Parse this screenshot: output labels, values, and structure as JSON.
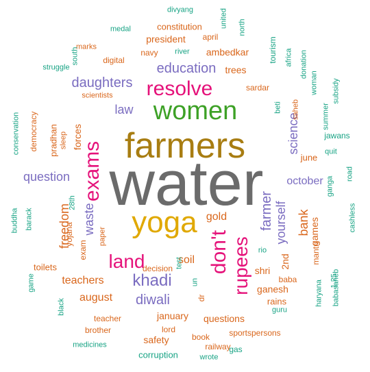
{
  "colors": {
    "gray": "#6b6b6b",
    "brown": "#a87d12",
    "gold": "#e0a800",
    "green": "#3da126",
    "magenta": "#e5127a",
    "purple": "#7a6cc0",
    "orange": "#d9661b",
    "teal": "#17a384"
  },
  "words": [
    {
      "text": "water",
      "color": "gray",
      "vertical": false
    },
    {
      "text": "farmers",
      "color": "brown",
      "vertical": false
    },
    {
      "text": "yoga",
      "color": "gold",
      "vertical": false
    },
    {
      "text": "women",
      "color": "green",
      "vertical": false
    },
    {
      "text": "exams",
      "color": "magenta",
      "vertical": true
    },
    {
      "text": "don't",
      "color": "magenta",
      "vertical": true
    },
    {
      "text": "rupees",
      "color": "magenta",
      "vertical": true
    },
    {
      "text": "land",
      "color": "magenta",
      "vertical": false
    },
    {
      "text": "resolve",
      "color": "magenta",
      "vertical": false
    },
    {
      "text": "education",
      "color": "purple",
      "vertical": false
    },
    {
      "text": "khadi",
      "color": "purple",
      "vertical": false
    },
    {
      "text": "diwali",
      "color": "purple",
      "vertical": false
    },
    {
      "text": "farmer",
      "color": "purple",
      "vertical": true
    },
    {
      "text": "yourself",
      "color": "purple",
      "vertical": true
    },
    {
      "text": "daughters",
      "color": "purple",
      "vertical": false
    },
    {
      "text": "question",
      "color": "purple",
      "vertical": false
    },
    {
      "text": "science",
      "color": "purple",
      "vertical": true
    },
    {
      "text": "october",
      "color": "purple",
      "vertical": false
    },
    {
      "text": "waste",
      "color": "purple",
      "vertical": true
    },
    {
      "text": "law",
      "color": "purple",
      "vertical": false
    },
    {
      "text": "freedom",
      "color": "orange",
      "vertical": true
    },
    {
      "text": "teachers",
      "color": "orange",
      "vertical": false
    },
    {
      "text": "august",
      "color": "orange",
      "vertical": false
    },
    {
      "text": "gold",
      "color": "orange",
      "vertical": false
    },
    {
      "text": "soil",
      "color": "orange",
      "vertical": false
    },
    {
      "text": "shri",
      "color": "orange",
      "vertical": false
    },
    {
      "text": "bank",
      "color": "orange",
      "vertical": true
    },
    {
      "text": "games",
      "color": "orange",
      "vertical": true
    },
    {
      "text": "ganesh",
      "color": "orange",
      "vertical": false
    },
    {
      "text": "january",
      "color": "orange",
      "vertical": false
    },
    {
      "text": "questions",
      "color": "orange",
      "vertical": false
    },
    {
      "text": "forces",
      "color": "orange",
      "vertical": true
    },
    {
      "text": "sardar",
      "color": "orange",
      "vertical": false
    },
    {
      "text": "ambedkar",
      "color": "orange",
      "vertical": false
    },
    {
      "text": "president",
      "color": "orange",
      "vertical": false
    },
    {
      "text": "constitution",
      "color": "orange",
      "vertical": false
    },
    {
      "text": "digital",
      "color": "orange",
      "vertical": false
    },
    {
      "text": "navy",
      "color": "orange",
      "vertical": false
    },
    {
      "text": "june",
      "color": "orange",
      "vertical": false
    },
    {
      "text": "trees",
      "color": "orange",
      "vertical": false
    },
    {
      "text": "april",
      "color": "orange",
      "vertical": false
    },
    {
      "text": "safety",
      "color": "orange",
      "vertical": false
    },
    {
      "text": "lord",
      "color": "orange",
      "vertical": false
    },
    {
      "text": "teacher",
      "color": "orange",
      "vertical": false
    },
    {
      "text": "book",
      "color": "orange",
      "vertical": false
    },
    {
      "text": "railway",
      "color": "orange",
      "vertical": false
    },
    {
      "text": "sportspersons",
      "color": "orange",
      "vertical": false
    },
    {
      "text": "rains",
      "color": "orange",
      "vertical": false
    },
    {
      "text": "baba",
      "color": "orange",
      "vertical": false
    },
    {
      "text": "2nd",
      "color": "orange",
      "vertical": true
    },
    {
      "text": "mantri",
      "color": "orange",
      "vertical": true
    },
    {
      "text": "exam",
      "color": "orange",
      "vertical": true
    },
    {
      "text": "yojana",
      "color": "orange",
      "vertical": true
    },
    {
      "text": "pradhan",
      "color": "orange",
      "vertical": true
    },
    {
      "text": "democracy",
      "color": "orange",
      "vertical": true
    },
    {
      "text": "toilets",
      "color": "orange",
      "vertical": false
    },
    {
      "text": "decision",
      "color": "orange",
      "vertical": false
    },
    {
      "text": "dr",
      "color": "orange",
      "vertical": true
    },
    {
      "text": "saheb",
      "color": "orange",
      "vertical": true
    },
    {
      "text": "paper",
      "color": "orange",
      "vertical": true
    },
    {
      "text": "scientists",
      "color": "orange",
      "vertical": false
    },
    {
      "text": "sleep",
      "color": "orange",
      "vertical": true
    },
    {
      "text": "brother",
      "color": "orange",
      "vertical": false
    },
    {
      "text": "marks",
      "color": "orange",
      "vertical": false
    },
    {
      "text": "medal",
      "color": "teal",
      "vertical": false
    },
    {
      "text": "divyang",
      "color": "teal",
      "vertical": false
    },
    {
      "text": "united",
      "color": "teal",
      "vertical": true
    },
    {
      "text": "north",
      "color": "teal",
      "vertical": true
    },
    {
      "text": "river",
      "color": "teal",
      "vertical": false
    },
    {
      "text": "struggle",
      "color": "teal",
      "vertical": false
    },
    {
      "text": "south",
      "color": "teal",
      "vertical": true
    },
    {
      "text": "tourism",
      "color": "teal",
      "vertical": true
    },
    {
      "text": "africa",
      "color": "teal",
      "vertical": true
    },
    {
      "text": "donation",
      "color": "teal",
      "vertical": true
    },
    {
      "text": "woman",
      "color": "teal",
      "vertical": true
    },
    {
      "text": "summer",
      "color": "teal",
      "vertical": true
    },
    {
      "text": "subsidy",
      "color": "teal",
      "vertical": true
    },
    {
      "text": "jawans",
      "color": "teal",
      "vertical": false
    },
    {
      "text": "quit",
      "color": "teal",
      "vertical": false
    },
    {
      "text": "beti",
      "color": "teal",
      "vertical": true
    },
    {
      "text": "conservation",
      "color": "teal",
      "vertical": true
    },
    {
      "text": "buddha",
      "color": "teal",
      "vertical": true
    },
    {
      "text": "barack",
      "color": "teal",
      "vertical": true
    },
    {
      "text": "28th",
      "color": "teal",
      "vertical": true
    },
    {
      "text": "cashless",
      "color": "teal",
      "vertical": true
    },
    {
      "text": "road",
      "color": "teal",
      "vertical": true
    },
    {
      "text": "ganga",
      "color": "teal",
      "vertical": true
    },
    {
      "text": "1.25",
      "color": "teal",
      "vertical": true
    },
    {
      "text": "rio",
      "color": "teal",
      "vertical": false
    },
    {
      "text": "test",
      "color": "teal",
      "vertical": true
    },
    {
      "text": "un",
      "color": "teal",
      "vertical": true
    },
    {
      "text": "game",
      "color": "teal",
      "vertical": true
    },
    {
      "text": "black",
      "color": "teal",
      "vertical": true
    },
    {
      "text": "guru",
      "color": "teal",
      "vertical": false
    },
    {
      "text": "haryana",
      "color": "teal",
      "vertical": true
    },
    {
      "text": "babasaheb",
      "color": "teal",
      "vertical": true
    },
    {
      "text": "gas",
      "color": "teal",
      "vertical": false
    },
    {
      "text": "medicines",
      "color": "teal",
      "vertical": false
    },
    {
      "text": "corruption",
      "color": "teal",
      "vertical": false
    },
    {
      "text": "wrote",
      "color": "teal",
      "vertical": false
    }
  ]
}
